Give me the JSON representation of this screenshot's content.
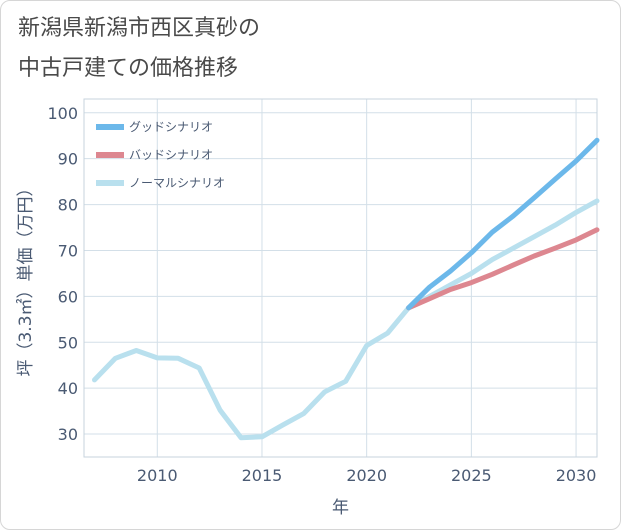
{
  "title": {
    "line1": "新潟県新潟市西区真砂の",
    "line2": "中古戸建ての価格推移"
  },
  "chart_data": {
    "type": "line",
    "xlabel": "年",
    "ylabel": "坪（3.3㎡）単価（万円）",
    "xlim": [
      2006.5,
      2031
    ],
    "ylim": [
      25,
      103
    ],
    "xticks": [
      2010,
      2015,
      2020,
      2025,
      2030
    ],
    "yticks": [
      30,
      40,
      50,
      60,
      70,
      80,
      90,
      100
    ],
    "grid": true,
    "legend_position": "top-left",
    "series": [
      {
        "name": "グッドシナリオ",
        "color": "#6cb8ea",
        "x": [
          2022,
          2023,
          2024,
          2025,
          2026,
          2027,
          2028,
          2029,
          2030,
          2031
        ],
        "y": [
          57.5,
          62,
          65.5,
          69.5,
          74,
          77.5,
          81.5,
          85.5,
          89.5,
          94
        ]
      },
      {
        "name": "バッドシナリオ",
        "color": "#dd8790",
        "x": [
          2022,
          2023,
          2024,
          2025,
          2026,
          2027,
          2028,
          2029,
          2030,
          2031
        ],
        "y": [
          57.5,
          59.5,
          61.5,
          63,
          64.8,
          66.8,
          68.8,
          70.5,
          72.3,
          74.5
        ]
      },
      {
        "name": "ノーマルシナリオ",
        "color": "#b9e0ee",
        "x": [
          2007,
          2008,
          2009,
          2010,
          2011,
          2012,
          2013,
          2014,
          2015,
          2016,
          2017,
          2018,
          2019,
          2020,
          2021,
          2022,
          2023,
          2024,
          2025,
          2026,
          2027,
          2028,
          2029,
          2030,
          2031
        ],
        "y": [
          41.8,
          46.5,
          48.2,
          46.6,
          46.5,
          44.4,
          35.2,
          29.2,
          29.4,
          32,
          34.5,
          39.2,
          41.5,
          49.3,
          52,
          57.5,
          60,
          62.5,
          65,
          68,
          70.5,
          73,
          75.5,
          78.3,
          80.8
        ]
      }
    ]
  }
}
